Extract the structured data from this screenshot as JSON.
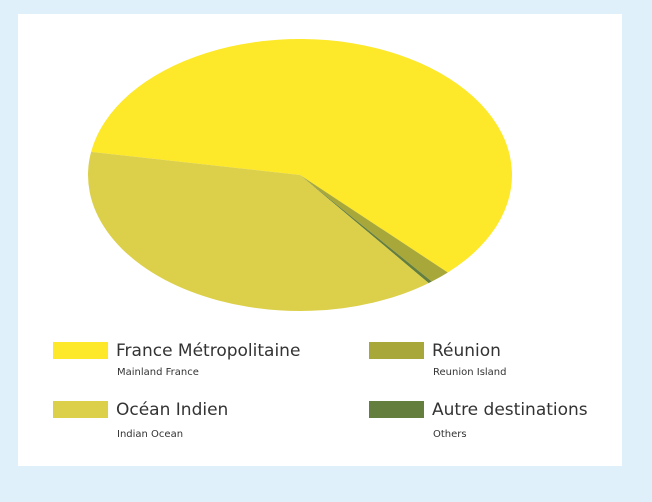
{
  "chart_data": {
    "type": "pie",
    "categories": [
      "France Métropolitaine",
      "Réunion",
      "Autre destinations",
      "Océan Indien"
    ],
    "category_subtitles": [
      "Mainland France",
      "Reunion Island",
      "Others",
      "Indian Ocean"
    ],
    "values": [
      60,
      1.6,
      0.3,
      38.1
    ],
    "colors": [
      "#fde82a",
      "#a8a83a",
      "#647e3e",
      "#dcd04a"
    ],
    "legend": "bottom"
  }
}
